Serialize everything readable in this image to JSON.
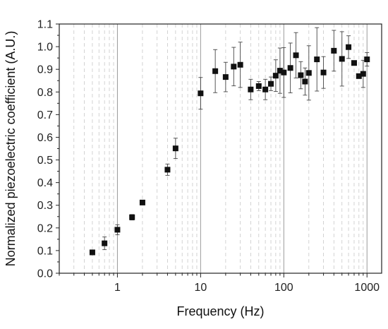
{
  "chart_data": {
    "type": "scatter",
    "xlabel": "Frequency (Hz)",
    "ylabel": "Normalized piezoelectric coefficient (A.U.)",
    "x_scale": "log",
    "xlim": [
      0.2,
      1500
    ],
    "ylim": [
      0.0,
      1.1
    ],
    "x_tick_labels": [
      "1",
      "10",
      "100",
      "1000"
    ],
    "x_ticks": [
      1,
      10,
      100,
      1000
    ],
    "y_ticks": [
      0.0,
      0.1,
      0.2,
      0.3,
      0.4,
      0.5,
      0.6,
      0.7,
      0.8,
      0.9,
      1.0,
      1.1
    ],
    "y_tick_labels": [
      "0.0",
      "0.1",
      "0.2",
      "0.3",
      "0.4",
      "0.5",
      "0.6",
      "0.7",
      "0.8",
      "0.9",
      "1.0",
      "1.1"
    ],
    "grid": {
      "major_x": "solid",
      "minor_x": "dashed",
      "y": "none"
    },
    "marker": "square",
    "marker_color": "#111111",
    "points": [
      {
        "x": 0.5,
        "y": 0.092,
        "err": 0.0
      },
      {
        "x": 0.7,
        "y": 0.132,
        "err": 0.028
      },
      {
        "x": 1,
        "y": 0.192,
        "err": 0.022
      },
      {
        "x": 1.5,
        "y": 0.247,
        "err": 0.012
      },
      {
        "x": 2,
        "y": 0.312,
        "err": 0.0
      },
      {
        "x": 4,
        "y": 0.457,
        "err": 0.025
      },
      {
        "x": 5,
        "y": 0.551,
        "err": 0.045
      },
      {
        "x": 10,
        "y": 0.794,
        "err": 0.07
      },
      {
        "x": 15,
        "y": 0.892,
        "err": 0.095
      },
      {
        "x": 20,
        "y": 0.866,
        "err": 0.065
      },
      {
        "x": 25,
        "y": 0.912,
        "err": 0.085
      },
      {
        "x": 30,
        "y": 0.92,
        "err": 0.1
      },
      {
        "x": 40,
        "y": 0.811,
        "err": 0.045
      },
      {
        "x": 50,
        "y": 0.826,
        "err": 0.02
      },
      {
        "x": 60,
        "y": 0.811,
        "err": 0.045
      },
      {
        "x": 70,
        "y": 0.836,
        "err": 0.03
      },
      {
        "x": 80,
        "y": 0.872,
        "err": 0.07
      },
      {
        "x": 90,
        "y": 0.894,
        "err": 0.1
      },
      {
        "x": 100,
        "y": 0.886,
        "err": 0.11
      },
      {
        "x": 120,
        "y": 0.906,
        "err": 0.11
      },
      {
        "x": 140,
        "y": 0.962,
        "err": 0.1
      },
      {
        "x": 160,
        "y": 0.874,
        "err": 0.06
      },
      {
        "x": 180,
        "y": 0.846,
        "err": 0.06
      },
      {
        "x": 200,
        "y": 0.884,
        "err": 0.12
      },
      {
        "x": 250,
        "y": 0.944,
        "err": 0.14
      },
      {
        "x": 300,
        "y": 0.886,
        "err": 0.07
      },
      {
        "x": 400,
        "y": 0.982,
        "err": 0.09
      },
      {
        "x": 500,
        "y": 0.946,
        "err": 0.12
      },
      {
        "x": 600,
        "y": 0.998,
        "err": 0.05
      },
      {
        "x": 700,
        "y": 0.928,
        "err": 0.0
      },
      {
        "x": 800,
        "y": 0.87,
        "err": 0.0
      },
      {
        "x": 900,
        "y": 0.88,
        "err": 0.06
      },
      {
        "x": 1000,
        "y": 0.944,
        "err": 0.03
      }
    ]
  }
}
